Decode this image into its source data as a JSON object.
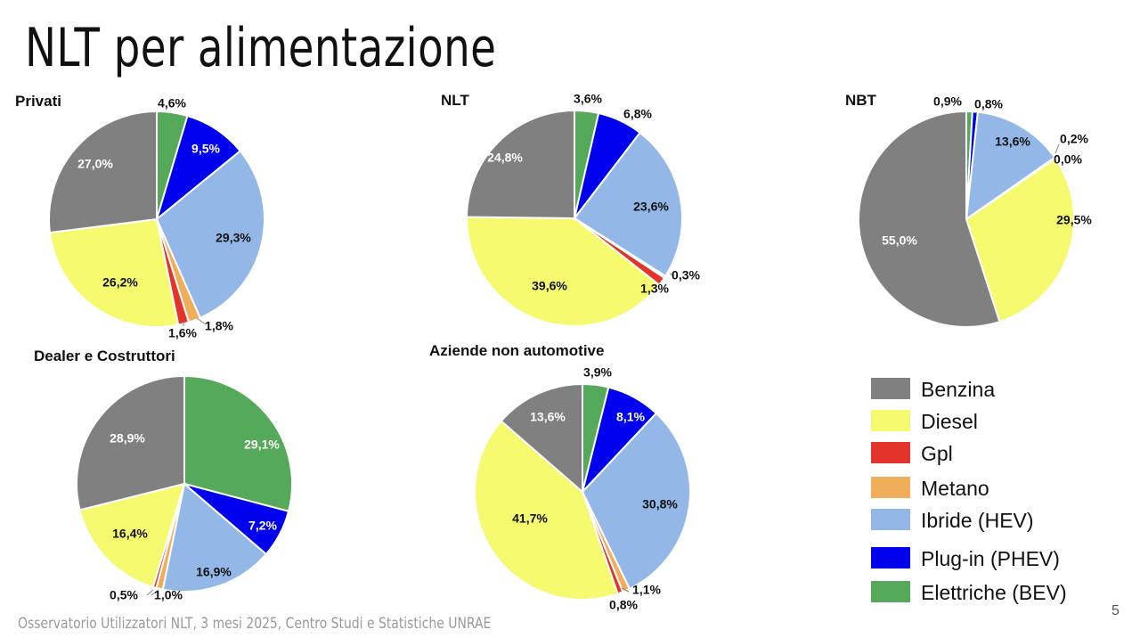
{
  "page": {
    "title": "NLT per alimentazione",
    "footer": "Osservatorio Utilizzatori NLT, 3 mesi 2025, Centro Studi e Statistiche UNRAE",
    "page_number": "5"
  },
  "legend": [
    {
      "name": "Benzina",
      "color": "#808080"
    },
    {
      "name": "Diesel",
      "color": "#F5FA6E"
    },
    {
      "name": "Gpl",
      "color": "#E2342A"
    },
    {
      "name": "Metano",
      "color": "#F0AE5A"
    },
    {
      "name": "Ibride (HEV)",
      "color": "#93B8E8"
    },
    {
      "name": "Plug-in (PHEV)",
      "color": "#0000EE"
    },
    {
      "name": "Elettriche (BEV)",
      "color": "#54AA5A"
    }
  ],
  "chart_data": [
    {
      "type": "pie",
      "title": "Privati",
      "categories": [
        "Elettriche (BEV)",
        "Plug-in (PHEV)",
        "Ibride (HEV)",
        "Metano",
        "Gpl",
        "Diesel",
        "Benzina"
      ],
      "values": [
        4.6,
        9.5,
        29.3,
        1.8,
        1.6,
        26.2,
        27.0
      ],
      "labels": [
        "4,6%",
        "9,5%",
        "29,3%",
        "1,8%",
        "1,6%",
        "26,2%",
        "27,0%"
      ]
    },
    {
      "type": "pie",
      "title": "NLT",
      "categories": [
        "Elettriche (BEV)",
        "Plug-in (PHEV)",
        "Ibride (HEV)",
        "Metano",
        "Gpl",
        "Diesel",
        "Benzina"
      ],
      "values": [
        3.6,
        6.8,
        23.6,
        0.3,
        1.3,
        39.6,
        24.8
      ],
      "labels": [
        "3,6%",
        "6,8%",
        "23,6%",
        "0,3%",
        "1,3%",
        "39,6%",
        "24,8%"
      ]
    },
    {
      "type": "pie",
      "title": "NBT",
      "categories": [
        "Elettriche (BEV)",
        "Plug-in (PHEV)",
        "Ibride (HEV)",
        "Metano",
        "Gpl",
        "Diesel",
        "Benzina"
      ],
      "values": [
        0.9,
        0.8,
        13.6,
        0.2,
        0.0,
        29.5,
        55.0
      ],
      "labels": [
        "0,9%",
        "0,8%",
        "13,6%",
        "0,2%",
        "0,0%",
        "29,5%",
        "55,0%"
      ]
    },
    {
      "type": "pie",
      "title": "Dealer e Costruttori",
      "categories": [
        "Elettriche (BEV)",
        "Plug-in (PHEV)",
        "Ibride (HEV)",
        "Metano",
        "Gpl",
        "Diesel",
        "Benzina"
      ],
      "values": [
        29.1,
        7.2,
        16.9,
        1.0,
        0.5,
        16.4,
        28.9
      ],
      "labels": [
        "29,1%",
        "7,2%",
        "16,9%",
        "1,0%",
        "0,5%",
        "16,4%",
        "28,9%"
      ]
    },
    {
      "type": "pie",
      "title": "Aziende non automotive",
      "categories": [
        "Elettriche (BEV)",
        "Plug-in (PHEV)",
        "Ibride (HEV)",
        "Metano",
        "Gpl",
        "Diesel",
        "Benzina"
      ],
      "values": [
        3.9,
        8.1,
        30.8,
        1.1,
        0.8,
        41.7,
        13.6
      ],
      "labels": [
        "3,9%",
        "8,1%",
        "30,8%",
        "1,1%",
        "0,8%",
        "41,7%",
        "13,6%"
      ]
    }
  ]
}
